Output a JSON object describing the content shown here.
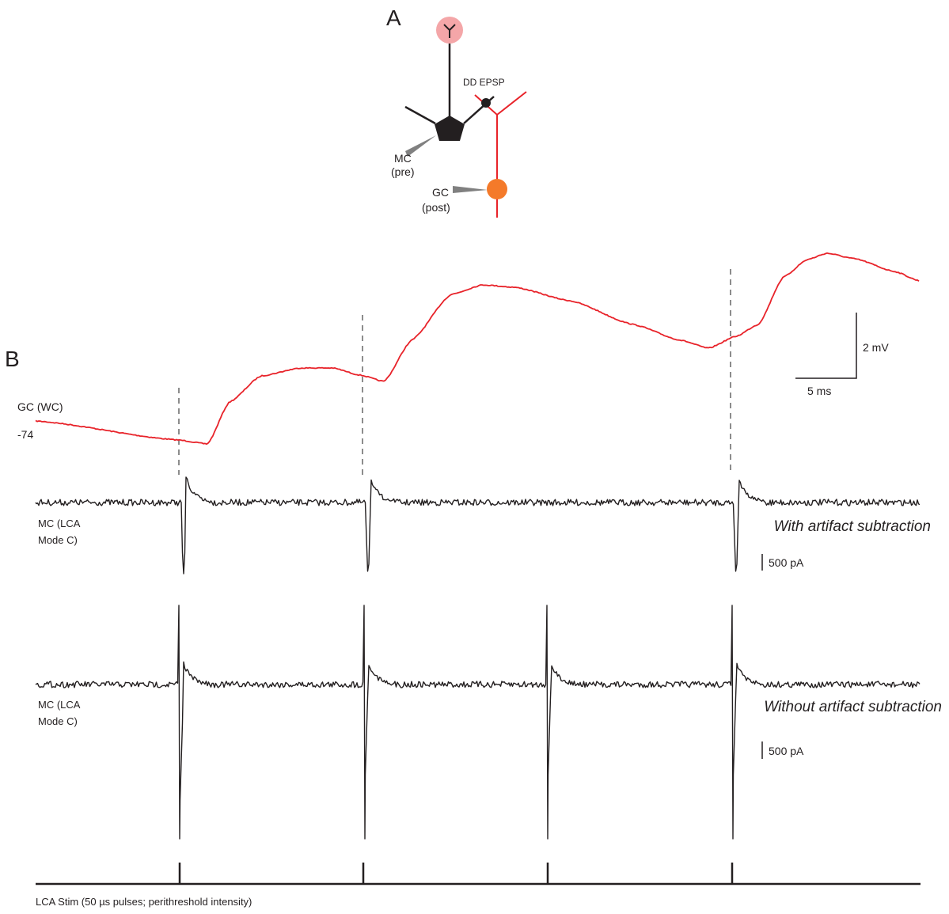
{
  "panel_a": {
    "label": "A",
    "synapse_label": "DD EPSP",
    "mc_label": "MC",
    "mc_role": "(pre)",
    "gc_label": "GC",
    "gc_role": "(post)"
  },
  "panel_b": {
    "label": "B",
    "gc_trace_label": "GC (WC)",
    "gc_resting": "-74",
    "mc_label_1": [
      "MC (LCA",
      "Mode C)"
    ],
    "mc_label_2": [
      "MC (LCA",
      "Mode C)"
    ],
    "with_label": "With artifact subtraction",
    "without_label": "Without artifact subtraction",
    "scale_voltage": "2 mV",
    "scale_time": "5 ms",
    "scale_current_1": "500 pA",
    "scale_current_2": "500 pA",
    "stim_label": "LCA Stim (50 µs pulses; perithreshold intensity)"
  }
}
